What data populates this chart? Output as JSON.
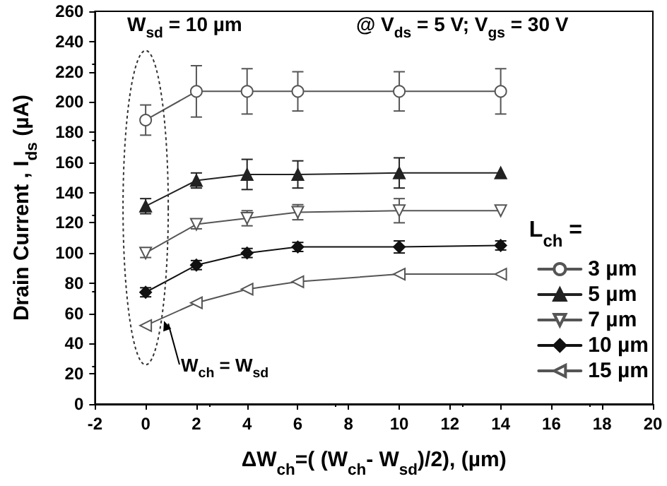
{
  "chart_data": {
    "type": "line",
    "xlabel": "ΔW$_{ch}$=( (W$_{ch}$- W$_{sd}$)/2), (µm)",
    "ylabel": "Drain Current , I$_{ds}$ (µA)",
    "legend_title": "L$_{ch}$ =",
    "annotations": [
      "W$_{sd}$ = 10 µm",
      "@ V$_{ds}$ = 5 V; V$_{gs}$ = 30 V",
      "W$_{ch}$ = W$_{sd}$"
    ],
    "x": [
      0,
      2,
      4,
      6,
      10,
      14
    ],
    "series": [
      {
        "name": "3 µm",
        "color": "#555555",
        "marker": "circle-open",
        "values": [
          188,
          207,
          207,
          207,
          207,
          207
        ],
        "errors": [
          10,
          17,
          15,
          13,
          13,
          15
        ]
      },
      {
        "name": "5 µm",
        "color": "#222222",
        "marker": "triangle-up",
        "values": [
          131,
          148,
          152,
          152,
          153,
          153
        ],
        "errors": [
          5,
          5,
          10,
          9,
          10,
          null
        ]
      },
      {
        "name": "7 µm",
        "color": "#555555",
        "marker": "triangle-down-open",
        "values": [
          100,
          119,
          123,
          127,
          128,
          128
        ],
        "errors": [
          3,
          3,
          5,
          5,
          8,
          null
        ]
      },
      {
        "name": "10 µm",
        "color": "#111111",
        "marker": "diamond",
        "values": [
          74,
          92,
          100,
          104,
          104,
          105
        ],
        "errors": [
          3,
          3,
          3,
          3,
          4,
          3
        ]
      },
      {
        "name": "15 µm",
        "color": "#555555",
        "marker": "triangle-left-open",
        "values": [
          52,
          67,
          76,
          81,
          86,
          86
        ]
      }
    ],
    "xlim": [
      -2,
      20
    ],
    "xticks": [
      -2,
      0,
      2,
      4,
      6,
      8,
      10,
      12,
      14,
      16,
      18,
      20
    ],
    "ylim": [
      0,
      260
    ],
    "yticks": [
      0,
      20,
      40,
      60,
      80,
      100,
      120,
      140,
      160,
      180,
      200,
      220,
      240,
      260
    ],
    "grid": false,
    "legend": "right"
  }
}
